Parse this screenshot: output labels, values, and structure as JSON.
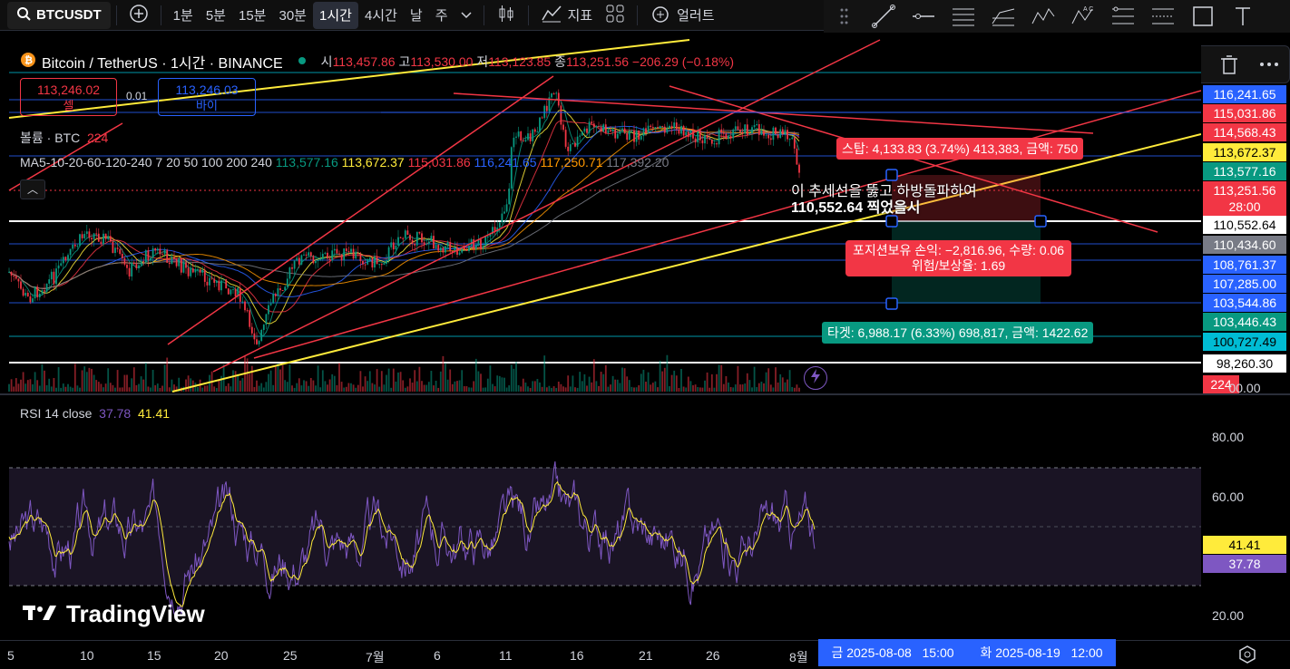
{
  "topbar": {
    "symbol": "BTCUSDT",
    "intervals": [
      "1분",
      "5분",
      "15분",
      "30분",
      "1시간",
      "4시간",
      "날",
      "주"
    ],
    "active_interval": "1시간",
    "indicators_label": "지표",
    "alert_label": "얼러트"
  },
  "legend": {
    "title": "Bitcoin / TetherUS · 1시간 · BINANCE",
    "open_label": "시",
    "open": "113,457.86",
    "high_label": "고",
    "high": "113,530.00",
    "low_label": "저",
    "low": "113,123.85",
    "close_label": "종",
    "close": "113,251.56",
    "change": "−206.29 (−0.18%)",
    "sell_price": "113,246.02",
    "sell_label": "셀",
    "spread": "0.01",
    "buy_price": "113,246.03",
    "buy_label": "바이",
    "volume_label": "볼륨 · BTC",
    "volume_value": "224",
    "ma_label": "MA5-10-20-60-120-240 7 20 50 100 200 240",
    "ma_values": [
      {
        "v": "113,577.16",
        "c": "#089981"
      },
      {
        "v": "113,672.37",
        "c": "#ffeb3b"
      },
      {
        "v": "115,031.86",
        "c": "#f23645"
      },
      {
        "v": "116,241.65",
        "c": "#2962ff"
      },
      {
        "v": "117,250.71",
        "c": "#ff9800"
      },
      {
        "v": "117,392.20",
        "c": "#787b86"
      }
    ]
  },
  "price_labels": [
    {
      "v": "116,241.65",
      "bg": "#2962ff",
      "fg": "#ffffff",
      "y": 94
    },
    {
      "v": "115,031.86",
      "bg": "#f23645",
      "fg": "#ffffff",
      "y": 115
    },
    {
      "v": "114,568.43",
      "bg": "#f23645",
      "fg": "#ffffff",
      "y": 136
    },
    {
      "v": "113,672.37",
      "bg": "#ffeb3b",
      "fg": "#000000",
      "y": 158
    },
    {
      "v": "113,577.16",
      "bg": "#089981",
      "fg": "#ffffff",
      "y": 179
    },
    {
      "v": "113,251.56",
      "bg": "#f23645",
      "fg": "#ffffff",
      "y": 200
    },
    {
      "v": "28:00",
      "bg": "#f23645",
      "fg": "#ffffff",
      "y": 218
    },
    {
      "v": "110,552.64",
      "bg": "#ffffff",
      "fg": "#000000",
      "y": 238
    },
    {
      "v": "110,434.60",
      "bg": "#787b86",
      "fg": "#ffffff",
      "y": 260
    },
    {
      "v": "108,761.37",
      "bg": "#2962ff",
      "fg": "#ffffff",
      "y": 282
    },
    {
      "v": "107,285.00",
      "bg": "#2962ff",
      "fg": "#ffffff",
      "y": 303
    },
    {
      "v": "103,544.86",
      "bg": "#2962ff",
      "fg": "#ffffff",
      "y": 324
    },
    {
      "v": "103,446.43",
      "bg": "#089981",
      "fg": "#ffffff",
      "y": 345
    },
    {
      "v": "100,727.49",
      "bg": "#00bcd4",
      "fg": "#000000",
      "y": 367
    },
    {
      "v": "98,260.30",
      "bg": "#ffffff",
      "fg": "#000000",
      "y": 391
    },
    {
      "v": "224",
      "bg": "#f23645",
      "fg": "#ffffff",
      "y": 414
    },
    {
      "v": "00.00",
      "bg": "transparent",
      "fg": "#d1d4dc",
      "y": 418
    }
  ],
  "annotations": {
    "stop": "스탑: 4,133.83 (3.74%) 413,383, 금액: 750",
    "note_line1": "이 추세선을 뚫고 하방돌파하여",
    "note_line2": "110,552.64 찍었을시",
    "position_line1": "포지션보유 손익: −2,816.96, 수량: 0.06",
    "position_line2": "위험/보상율: 1.69",
    "target": "타겟: 6,988.17 (6.33%) 698,817, 금액: 1422.62"
  },
  "rsi": {
    "label": "RSI 14 close",
    "value1": "37.78",
    "value2": "41.41",
    "axis": [
      "80.00",
      "60.00",
      "20.00"
    ],
    "label_41": "41.41",
    "label_37": "37.78"
  },
  "time_axis": {
    "ticks": [
      "5",
      "10",
      "15",
      "20",
      "25",
      "7월",
      "6",
      "11",
      "16",
      "21",
      "26",
      "8월"
    ],
    "range_start": "금 2025-08-08   15:00",
    "range_end": "화 2025-08-19   12:00"
  },
  "watermark": "TradingView",
  "colors": {
    "up": "#089981",
    "down": "#f23645",
    "trend_red": "#f23645",
    "trend_yellow": "#ffeb3b",
    "blue_line": "#2962ff",
    "rsi_line": "#7e57c2",
    "rsi_ma": "#ffeb3b"
  }
}
